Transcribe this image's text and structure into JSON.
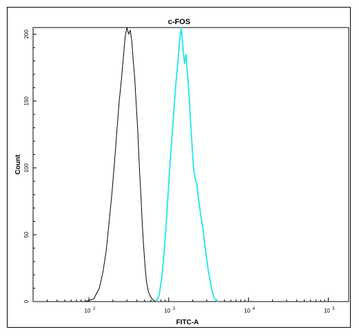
{
  "chart_data": {
    "type": "line",
    "title": "c-FOS",
    "xlabel": "FITC-A",
    "ylabel": "Count",
    "x_scale": "log",
    "xlim": [
      20,
      180000
    ],
    "ylim": [
      0,
      205
    ],
    "y_ticks": [
      0,
      50,
      100,
      150,
      200
    ],
    "y_tick_labels": [
      "0",
      "50",
      "100",
      "150",
      "200"
    ],
    "x_ticks": [
      {
        "base": "10",
        "exp": "2",
        "value": 100
      },
      {
        "base": "10",
        "exp": "3",
        "value": 1000
      },
      {
        "base": "10",
        "exp": "4",
        "value": 10000
      },
      {
        "base": "10",
        "exp": "5",
        "value": 100000
      }
    ],
    "grid": false,
    "series": [
      {
        "color": "#000000",
        "x": [
          90,
          115,
          135,
          150,
          165,
          180,
          195,
          210,
          225,
          240,
          255,
          270,
          285,
          300,
          315,
          330,
          345,
          360,
          375,
          390,
          410,
          430,
          450,
          470,
          490,
          510,
          530,
          560,
          590,
          620,
          650,
          680,
          700
        ],
        "y": [
          0,
          2,
          10,
          22,
          38,
          60,
          82,
          105,
          128,
          150,
          165,
          182,
          198,
          205,
          200,
          203,
          195,
          180,
          168,
          150,
          128,
          100,
          78,
          55,
          38,
          24,
          14,
          7,
          4,
          2,
          1,
          0,
          0
        ]
      },
      {
        "color": "#33e6e6",
        "x": [
          700,
          760,
          820,
          880,
          940,
          1000,
          1060,
          1120,
          1180,
          1240,
          1300,
          1370,
          1440,
          1510,
          1580,
          1650,
          1720,
          1800,
          1880,
          1960,
          2050,
          2150,
          2250,
          2350,
          2450,
          2560,
          2680,
          2800,
          2950,
          3100,
          3300,
          3500,
          3700,
          3900,
          4100
        ],
        "y": [
          0,
          5,
          18,
          38,
          62,
          88,
          110,
          130,
          148,
          165,
          178,
          195,
          205,
          190,
          178,
          185,
          170,
          155,
          135,
          118,
          100,
          92,
          88,
          78,
          70,
          62,
          55,
          45,
          35,
          25,
          16,
          8,
          3,
          1,
          0
        ]
      }
    ]
  }
}
